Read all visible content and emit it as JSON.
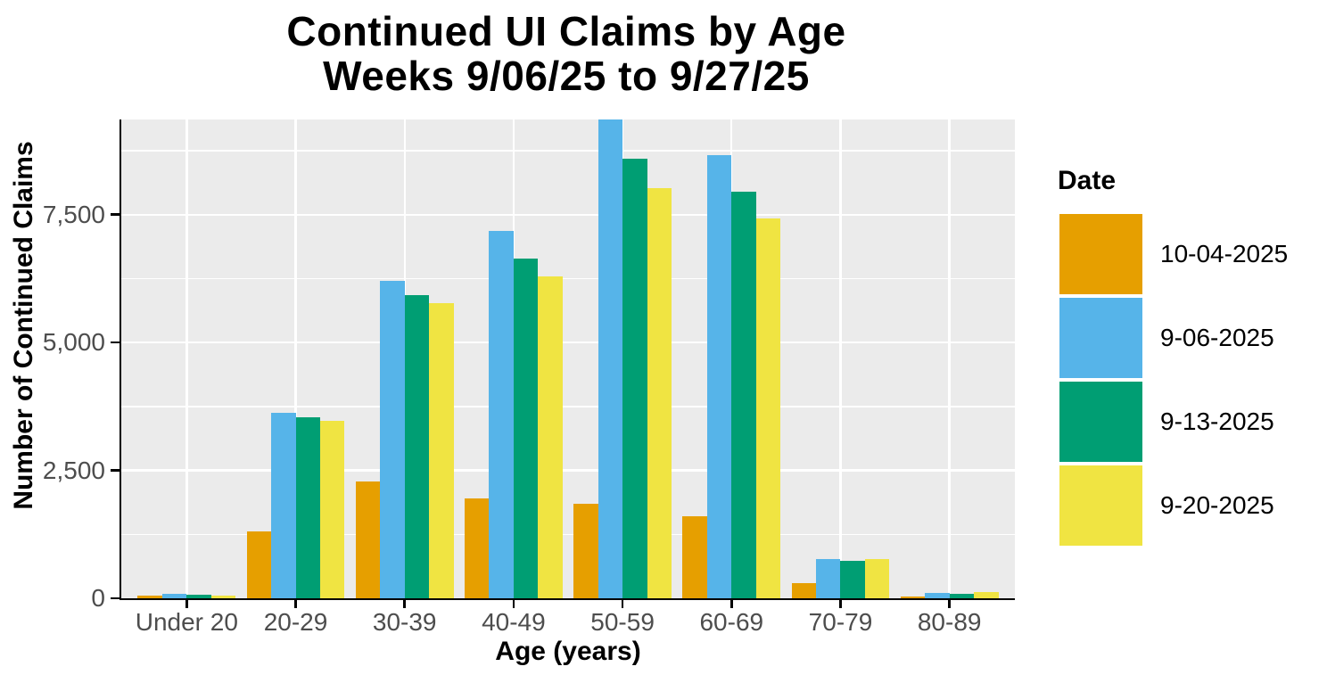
{
  "title": {
    "line1": "Continued UI Claims by Age",
    "line2": "Weeks 9/06/25 to 9/27/25"
  },
  "legend": {
    "title": "Date",
    "entries": [
      {
        "label": "10-04-2025",
        "color": "#E69F00"
      },
      {
        "label": "9-06-2025",
        "color": "#56B4E9"
      },
      {
        "label": "9-13-2025",
        "color": "#009E73"
      },
      {
        "label": "9-20-2025",
        "color": "#F0E442"
      }
    ]
  },
  "colors": {
    "background": "#FFFFFF",
    "panel_background": "#EBEBEB",
    "gridline": "#FFFFFF",
    "axis_line": "#000000",
    "axis_text": "#4D4D4D",
    "title_text": "#000000"
  },
  "chart_data": {
    "type": "bar",
    "title": "Continued UI Claims by Age — Weeks 9/06/25 to 9/27/25",
    "categories": [
      "Under 20",
      "20-29",
      "30-39",
      "40-49",
      "50-59",
      "60-69",
      "70-79",
      "80-89"
    ],
    "series": [
      {
        "name": "10-04-2025",
        "color": "#E69F00",
        "values": [
          50,
          1300,
          2280,
          1950,
          1850,
          1610,
          290,
          40
        ]
      },
      {
        "name": "9-06-2025",
        "color": "#56B4E9",
        "values": [
          80,
          3630,
          6210,
          7180,
          9360,
          8670,
          760,
          100
        ]
      },
      {
        "name": "9-13-2025",
        "color": "#009E73",
        "values": [
          70,
          3530,
          5930,
          6640,
          8590,
          7950,
          730,
          90
        ]
      },
      {
        "name": "9-20-2025",
        "color": "#F0E442",
        "values": [
          60,
          3470,
          5770,
          6300,
          8010,
          7430,
          775,
          115
        ]
      }
    ],
    "xlabel": "Age (years)",
    "ylabel": "Number of Continued Claims",
    "ylim": [
      0,
      9360
    ],
    "y_ticks": [
      {
        "value": 0,
        "label": "0"
      },
      {
        "value": 2500,
        "label": "2,500"
      },
      {
        "value": 5000,
        "label": "5,000"
      },
      {
        "value": 7500,
        "label": "7,500"
      }
    ],
    "y_minor_gridlines": [
      1250,
      3750,
      6250,
      8750
    ],
    "grid": true,
    "legend_position": "right",
    "legend_title": "Date",
    "bar_layout": {
      "category_padding": 0.6,
      "group_width_fraction": 0.9
    }
  }
}
